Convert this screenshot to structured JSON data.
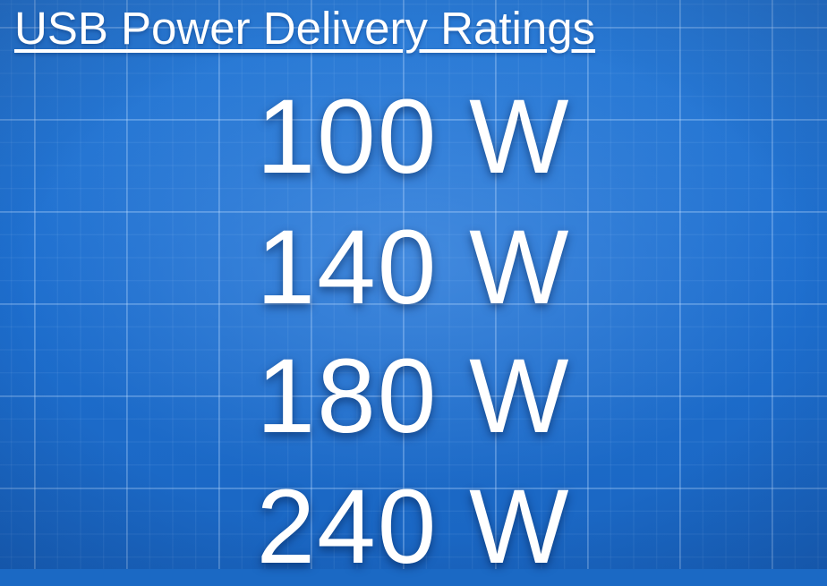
{
  "title": "USB Power Delivery Ratings",
  "ratings": [
    {
      "label": "100 W"
    },
    {
      "label": "140 W"
    },
    {
      "label": "180 W"
    },
    {
      "label": "240 W"
    }
  ],
  "colors": {
    "background": "#1e6fcf",
    "grid": "#bedcff",
    "text": "#ffffff"
  }
}
